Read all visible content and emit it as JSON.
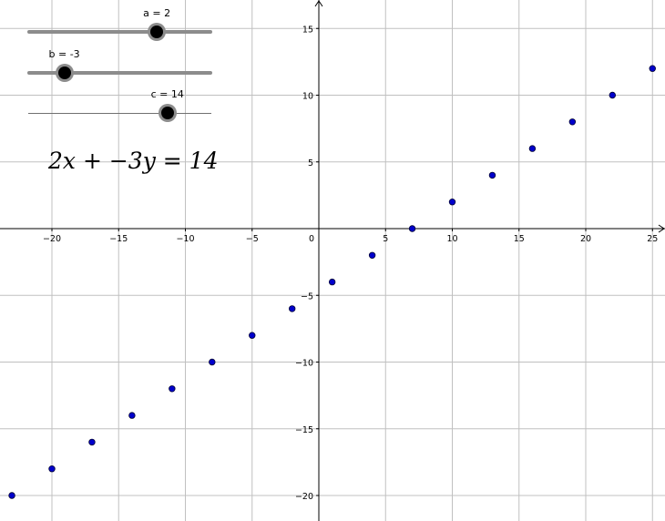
{
  "sliders": [
    {
      "name": "a",
      "label": "a = 2",
      "value": 2,
      "min": -5,
      "max": 5,
      "style": "thick"
    },
    {
      "name": "b",
      "label": "b = -3",
      "value": -3,
      "min": -5,
      "max": 5,
      "style": "thick"
    },
    {
      "name": "c",
      "label": "c = 14",
      "value": 14,
      "min": -5,
      "max": 20,
      "style": "thin"
    }
  ],
  "equation": {
    "text": "2x + −3y = 14"
  },
  "chart_data": {
    "type": "scatter",
    "title": "",
    "xlabel": "",
    "ylabel": "",
    "xlim": [
      -23.5,
      25.5
    ],
    "ylim": [
      -21.5,
      17
    ],
    "grid": true,
    "x_ticks": [
      -20,
      -15,
      -10,
      -5,
      0,
      5,
      10,
      15,
      20,
      25
    ],
    "y_ticks": [
      -20,
      -15,
      -10,
      -5,
      5,
      10,
      15
    ],
    "point_color": "#0000cc",
    "series": [
      {
        "x": [
          -23,
          -20,
          -17,
          -14,
          -11,
          -8,
          -5,
          -2,
          1,
          4,
          7,
          10,
          13,
          16,
          19,
          22,
          25
        ],
        "y": [
          -20,
          -18,
          -16,
          -14,
          -12,
          -10,
          -8,
          -6,
          -4,
          -2,
          0,
          2,
          4,
          6,
          8,
          10,
          12
        ]
      }
    ]
  }
}
